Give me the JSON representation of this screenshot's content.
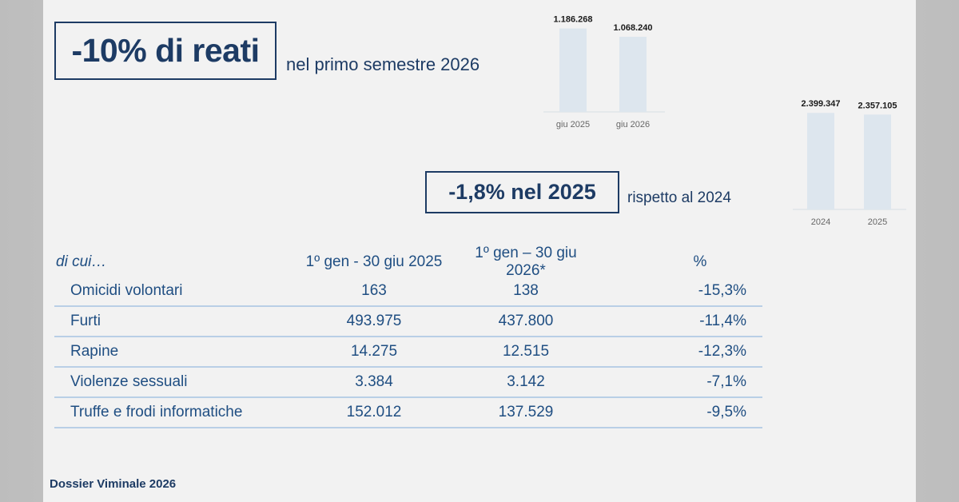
{
  "headline": {
    "value": "-10% di reati",
    "subtitle": "nel primo semestre 2026"
  },
  "subheadline": {
    "value": "-1,8% nel 2025",
    "subtitle": "rispetto al 2024"
  },
  "chart_data": [
    {
      "type": "bar",
      "categories": [
        "giu 2025",
        "giu 2026"
      ],
      "values": [
        1186268,
        1068240
      ],
      "value_labels": [
        "1.186.268",
        "1.068.240"
      ],
      "title": "",
      "xlabel": "",
      "ylabel": "",
      "ylim": [
        0,
        1250000
      ],
      "grid": false,
      "bar_color": "#dde6ee"
    },
    {
      "type": "bar",
      "categories": [
        "2024",
        "2025"
      ],
      "values": [
        2399347,
        2357105
      ],
      "value_labels": [
        "2.399.347",
        "2.357.105"
      ],
      "title": "",
      "xlabel": "",
      "ylabel": "",
      "ylim": [
        0,
        3000000
      ],
      "grid": false,
      "bar_color": "#dde6ee"
    }
  ],
  "table": {
    "headers": [
      "di cui…",
      "1º gen - 30 giu 2025",
      "1º gen – 30 giu 2026*",
      "%"
    ],
    "rows": [
      [
        "Omicidi volontari",
        "163",
        "138",
        "-15,3%"
      ],
      [
        "Furti",
        "493.975",
        "437.800",
        "-11,4%"
      ],
      [
        "Rapine",
        "14.275",
        "12.515",
        "-12,3%"
      ],
      [
        "Violenze sessuali",
        "3.384",
        "3.142",
        "-7,1%"
      ],
      [
        "Truffe e frodi informatiche",
        "152.012",
        "137.529",
        "-9,5%"
      ]
    ]
  },
  "footer": "Dossier Viminale 2026",
  "colors": {
    "navy": "#1d3b64",
    "table_text": "#1f4e82",
    "row_divider": "#b9cfe6",
    "bar": "#dde6ee"
  }
}
